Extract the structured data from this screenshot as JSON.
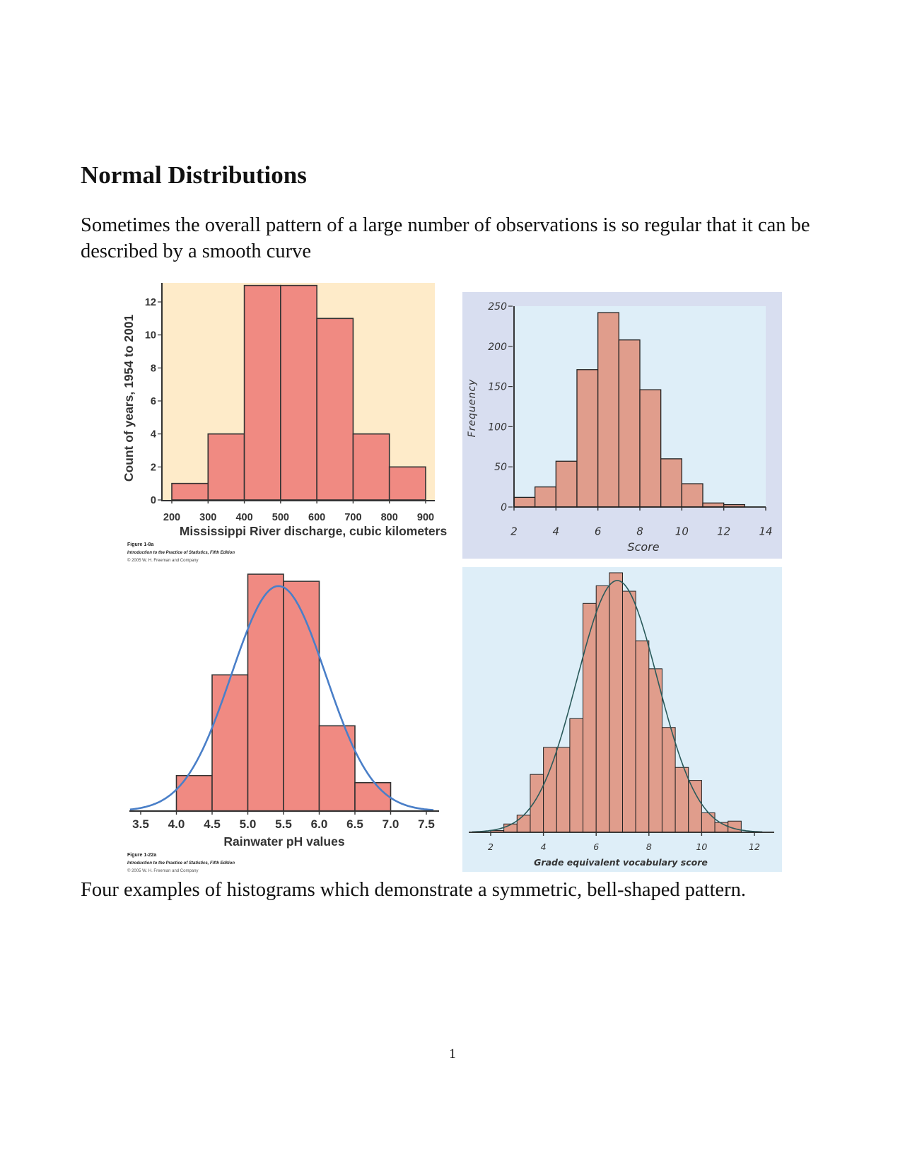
{
  "page": {
    "heading": "Normal Distributions",
    "intro": "Sometimes the overall pattern of a large number of observations is so regular that it can be described by a smooth curve",
    "caption": "Four examples of histograms which demonstrate a symmetric, bell-shaped pattern.",
    "page_number": "1"
  },
  "colors": {
    "bar_fill_1": "#f08a82",
    "bar_fill_2": "#e09d8c",
    "panel_1": "#feebc9",
    "panel_2_outer": "#d8def0",
    "panel_2_inner": "#deeef8",
    "panel_4": "#deeef8",
    "curve_3": "#4a7fc8",
    "curve_4": "#2a5a5a"
  },
  "chart_data": [
    {
      "type": "bar",
      "subtype": "histogram",
      "bins": [
        [
          200,
          300
        ],
        [
          300,
          400
        ],
        [
          400,
          500
        ],
        [
          500,
          600
        ],
        [
          600,
          700
        ],
        [
          700,
          800
        ],
        [
          800,
          900
        ]
      ],
      "values": [
        1,
        4,
        13,
        13,
        11,
        4,
        2
      ],
      "xlabel": "Mississippi River discharge, cubic kilometers",
      "ylabel": "Count of years, 1954 to 2001",
      "xticks": [
        "200",
        "300",
        "400",
        "500",
        "600",
        "700",
        "800",
        "900"
      ],
      "yticks": [
        "0",
        "2",
        "4",
        "6",
        "8",
        "10",
        "12"
      ],
      "xlim": [
        200,
        900
      ],
      "ylim": [
        0,
        13
      ],
      "grid": false,
      "figure_credit": [
        "Figure 1-8a",
        "Introduction to the Practice of Statistics, Fifth Edition",
        "© 2005 W. H. Freeman and Company"
      ]
    },
    {
      "type": "bar",
      "subtype": "histogram",
      "bins": [
        [
          2,
          3
        ],
        [
          3,
          4
        ],
        [
          4,
          5
        ],
        [
          5,
          6
        ],
        [
          6,
          7
        ],
        [
          7,
          8
        ],
        [
          8,
          9
        ],
        [
          9,
          10
        ],
        [
          10,
          11
        ],
        [
          11,
          12
        ],
        [
          12,
          13
        ]
      ],
      "values": [
        12,
        25,
        57,
        171,
        242,
        208,
        146,
        60,
        29,
        5,
        3
      ],
      "xlabel": "Score",
      "ylabel": "Frequency",
      "xticks": [
        "2",
        "4",
        "6",
        "8",
        "10",
        "12",
        "14"
      ],
      "yticks": [
        "0",
        "50",
        "100",
        "150",
        "200",
        "250"
      ],
      "xlim": [
        2,
        14
      ],
      "ylim": [
        0,
        250
      ],
      "grid": false
    },
    {
      "type": "bar",
      "subtype": "histogram with normal curve",
      "value_units": "relative height (tallest bar = 100); no y axis printed",
      "bins": [
        [
          4.0,
          4.5
        ],
        [
          4.5,
          5.0
        ],
        [
          5.0,
          5.5
        ],
        [
          5.5,
          6.0
        ],
        [
          6.0,
          6.5
        ],
        [
          6.5,
          7.0
        ]
      ],
      "values": [
        15,
        57.5,
        100,
        97,
        36,
        12
      ],
      "curve": {
        "mean": 5.43,
        "sd": 0.66,
        "peak": 95
      },
      "xlabel": "Rainwater pH values",
      "xticks": [
        "3.5",
        "4.0",
        "4.5",
        "5.0",
        "5.5",
        "6.0",
        "6.5",
        "7.0",
        "7.5"
      ],
      "xlim": [
        3.35,
        7.6
      ],
      "grid": false,
      "figure_credit": [
        "Figure 1-22a",
        "Introduction to the Practice of Statistics, Fifth Edition",
        "© 2005 W. H. Freeman and Company"
      ]
    },
    {
      "type": "bar",
      "subtype": "histogram with normal curve",
      "value_units": "relative height (tallest bar = 100); no y axis printed",
      "bins": [
        [
          2,
          2.5
        ],
        [
          2.5,
          3
        ],
        [
          3,
          3.5
        ],
        [
          3.5,
          4
        ],
        [
          4,
          4.5
        ],
        [
          4.5,
          5
        ],
        [
          5,
          5.5
        ],
        [
          5.5,
          6
        ],
        [
          6,
          6.5
        ],
        [
          6.5,
          7
        ],
        [
          7,
          7.5
        ],
        [
          7.5,
          8
        ],
        [
          8,
          8.5
        ],
        [
          8.5,
          9
        ],
        [
          9,
          9.5
        ],
        [
          9.5,
          10
        ],
        [
          10,
          10.5
        ],
        [
          10.5,
          11
        ],
        [
          11,
          11.5
        ]
      ],
      "values": [
        0.7,
        3.2,
        6.6,
        22.3,
        32.7,
        32.7,
        43.8,
        88.2,
        95,
        100,
        92.9,
        73.8,
        63,
        40.4,
        25,
        20,
        7.5,
        3.8,
        4.3
      ],
      "curve": {
        "mean": 6.8,
        "sd": 1.53,
        "peak": 97
      },
      "xlabel": "Grade equivalent vocabulary score",
      "xticks": [
        "2",
        "4",
        "6",
        "8",
        "10",
        "12"
      ],
      "xlim": [
        1.3,
        12.3
      ],
      "grid": false
    }
  ]
}
